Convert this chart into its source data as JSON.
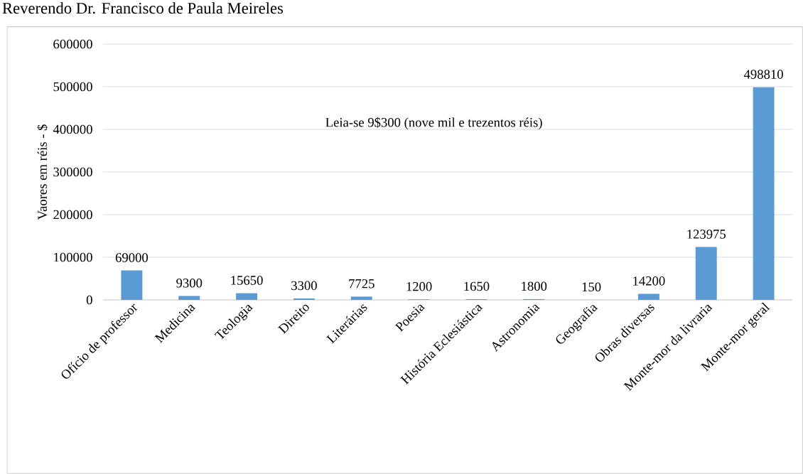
{
  "chart_data": {
    "type": "bar",
    "title": "Reverendo Dr. Francisco de Paula Meireles",
    "ylabel": "Vaores em réis - $",
    "categories": [
      "Ofício de professor",
      "Medicina",
      "Teologia",
      "Direito",
      "Literárias",
      "Poesia",
      "História Eclesiástica",
      "Astronomia",
      "Geografia",
      "Obras diversas",
      "Monte-mor da livraria",
      "Monte-mor geral"
    ],
    "values": [
      69000,
      9300,
      15650,
      3300,
      7725,
      1200,
      1650,
      1800,
      150,
      14200,
      123975,
      498810
    ],
    "color": "#5b9bd5",
    "ylim": [
      0,
      600000
    ],
    "yticks": [
      0,
      100000,
      200000,
      300000,
      400000,
      500000,
      600000
    ],
    "grid": "y",
    "data_labels": true,
    "annotations": [
      "Leia-se 9$300 (nove mil e trezentos réis)"
    ]
  }
}
